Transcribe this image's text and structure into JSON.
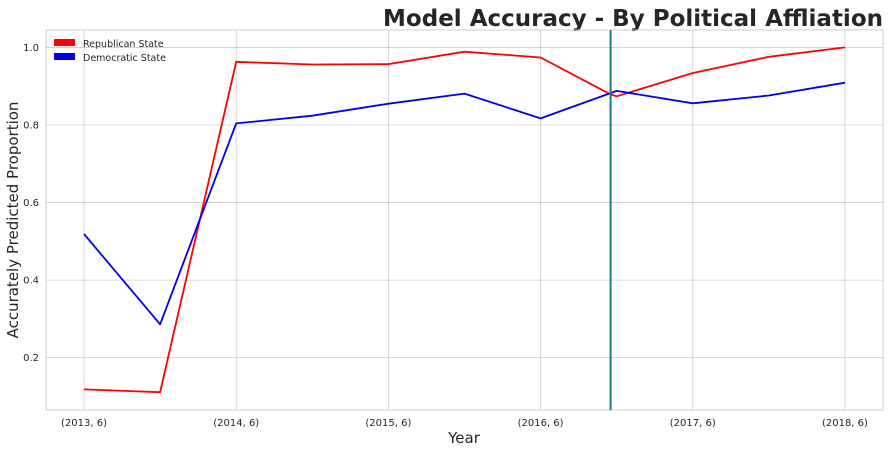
{
  "chart_data": {
    "type": "line",
    "title": "Model Accuracy - By Political Affliation",
    "xlabel": "Year",
    "ylabel": "Accurately Predicted Proportion",
    "x_tick_labels": [
      "(2013, 6)",
      "(2014, 6)",
      "(2015, 6)",
      "(2016, 6)",
      "(2017, 6)",
      "(2018, 6)"
    ],
    "x_tick_positions": [
      0,
      2,
      4,
      6,
      8,
      10
    ],
    "x_range": [
      -0.5,
      10.5
    ],
    "ylim": [
      0.065,
      1.045
    ],
    "y_ticks": [
      0.2,
      0.4,
      0.6,
      0.8,
      1.0
    ],
    "y_tick_labels": [
      "0.2",
      "0.4",
      "0.6",
      "0.8",
      "1.0"
    ],
    "grid": true,
    "legend_position": "top-left",
    "vertical_line": {
      "x": 6.92,
      "color": "#1b7a8c"
    },
    "series": [
      {
        "name": "Republican State",
        "color": "#ff0000",
        "x": [
          0,
          1,
          2,
          3,
          4,
          5,
          6,
          6.92,
          7,
          8,
          9,
          10
        ],
        "values": [
          0.118,
          0.111,
          0.963,
          0.956,
          0.957,
          0.989,
          0.974,
          0.879,
          0.874,
          0.934,
          0.976,
          1.0
        ]
      },
      {
        "name": "Democratic State",
        "color": "#0000ee",
        "x": [
          0,
          1,
          2,
          3,
          4,
          5,
          6,
          7,
          8,
          9,
          10
        ],
        "values": [
          0.519,
          0.286,
          0.804,
          0.824,
          0.855,
          0.881,
          0.817,
          0.888,
          0.856,
          0.876,
          0.909
        ]
      }
    ]
  }
}
